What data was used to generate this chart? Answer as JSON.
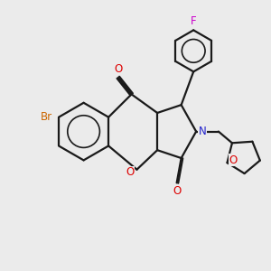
{
  "background_color": "#ebebeb",
  "bond_color": "#1a1a1a",
  "atom_colors": {
    "Br": "#cc6600",
    "O": "#dd0000",
    "N": "#2222cc",
    "F": "#cc00cc"
  },
  "figsize": [
    3.0,
    3.0
  ],
  "dpi": 100,
  "lw": 1.6,
  "double_sep": 0.055,
  "font_size": 8.5
}
